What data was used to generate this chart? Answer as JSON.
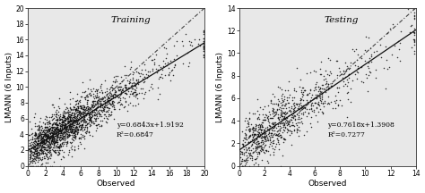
{
  "training": {
    "title": "Training",
    "equation": "y=0.6843x+1.9192",
    "r2": "R²=0.6847",
    "slope": 0.6843,
    "intercept": 1.9192,
    "xlim": [
      0,
      20
    ],
    "ylim": [
      0,
      20
    ],
    "xticks": [
      0,
      2,
      4,
      6,
      8,
      10,
      12,
      14,
      16,
      18,
      20
    ],
    "yticks": [
      0,
      2,
      4,
      6,
      8,
      10,
      12,
      14,
      16,
      18,
      20
    ],
    "n_points": 2000,
    "seed": 42,
    "x_scale": 3.0,
    "noise_std": 1.3,
    "reg_xstart": 0,
    "reg_xend": 20
  },
  "testing": {
    "title": "Testing",
    "equation": "y=0.7618x+1.3908",
    "r2": "R²=0.7277",
    "slope": 0.7618,
    "intercept": 1.3908,
    "xlim": [
      0,
      14
    ],
    "ylim": [
      0,
      14
    ],
    "xticks": [
      0,
      2,
      4,
      6,
      8,
      10,
      12,
      14
    ],
    "yticks": [
      0,
      2,
      4,
      6,
      8,
      10,
      12,
      14
    ],
    "n_points": 900,
    "seed": 7,
    "x_scale": 2.5,
    "noise_std": 1.2,
    "reg_xstart": 0,
    "reg_xend": 14
  },
  "xlabel": "Observed",
  "ylabel": "LMANN (6 Inputs)",
  "dot_size": 1.2,
  "dot_color": "#111111",
  "bg_color": "#e8e8e8"
}
